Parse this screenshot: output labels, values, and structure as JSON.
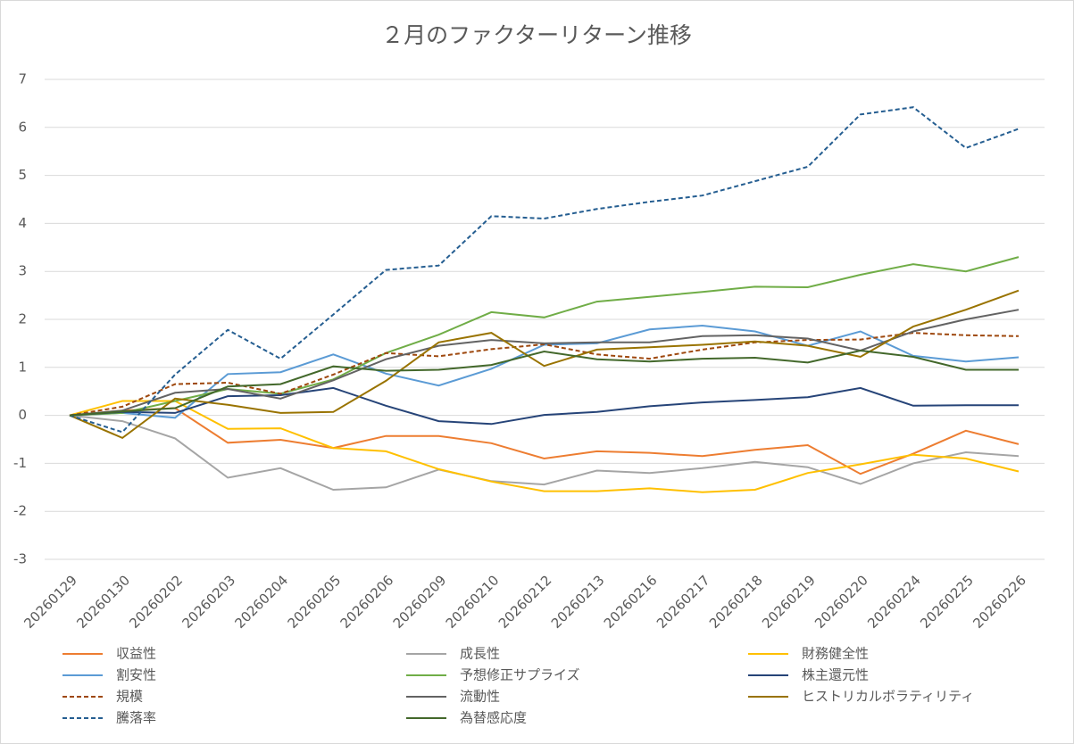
{
  "chart_data": {
    "type": "line",
    "title": "２月のファクターリターン推移",
    "categories": [
      "20260129",
      "20260130",
      "20260202",
      "20260203",
      "20260204",
      "20260205",
      "20260206",
      "20260209",
      "20260210",
      "20260212",
      "20260213",
      "20260216",
      "20260217",
      "20260218",
      "20260219",
      "20260220",
      "20260224",
      "20260225",
      "20260226"
    ],
    "ylim": [
      -3,
      7
    ],
    "yticks": [
      -3,
      -2,
      -1,
      0,
      1,
      2,
      3,
      4,
      5,
      6,
      7
    ],
    "grid": true,
    "legend": "bottom",
    "series": [
      {
        "name": "収益性",
        "color": "#ED7D31",
        "dashed": false,
        "values": [
          0,
          0.1,
          0.15,
          -0.57,
          -0.51,
          -0.68,
          -0.43,
          -0.43,
          -0.58,
          -0.9,
          -0.75,
          -0.78,
          -0.85,
          -0.72,
          -0.62,
          -1.22,
          -0.8,
          -0.32,
          -0.6
        ]
      },
      {
        "name": "成長性",
        "color": "#A5A5A5",
        "dashed": false,
        "values": [
          0,
          -0.12,
          -0.48,
          -1.3,
          -1.1,
          -1.55,
          -1.5,
          -1.13,
          -1.37,
          -1.44,
          -1.15,
          -1.2,
          -1.1,
          -0.97,
          -1.08,
          -1.43,
          -1.0,
          -0.77,
          -0.85
        ]
      },
      {
        "name": "財務健全性",
        "color": "#FFC000",
        "dashed": false,
        "values": [
          0,
          0.3,
          0.3,
          -0.28,
          -0.27,
          -0.68,
          -0.75,
          -1.12,
          -1.38,
          -1.58,
          -1.58,
          -1.52,
          -1.6,
          -1.55,
          -1.2,
          -1.02,
          -0.82,
          -0.9,
          -1.17
        ]
      },
      {
        "name": "割安性",
        "color": "#5B9BD5",
        "dashed": false,
        "values": [
          0,
          0.05,
          -0.05,
          0.86,
          0.9,
          1.27,
          0.87,
          0.62,
          0.97,
          1.47,
          1.5,
          1.79,
          1.87,
          1.75,
          1.45,
          1.75,
          1.24,
          1.12,
          1.21
        ]
      },
      {
        "name": "予想修正サプライズ",
        "color": "#70AD47",
        "dashed": false,
        "values": [
          0,
          0.05,
          0.3,
          0.55,
          0.45,
          0.75,
          1.3,
          1.68,
          2.15,
          2.04,
          2.37,
          2.47,
          2.57,
          2.68,
          2.67,
          2.93,
          3.15,
          3.0,
          3.3
        ]
      },
      {
        "name": "株主還元性",
        "color": "#264478",
        "dashed": false,
        "values": [
          0,
          0.07,
          0.05,
          0.4,
          0.42,
          0.57,
          0.2,
          -0.12,
          -0.18,
          0.01,
          0.07,
          0.19,
          0.27,
          0.32,
          0.38,
          0.57,
          0.2,
          0.21,
          0.21
        ]
      },
      {
        "name": "規模",
        "color": "#9E480E",
        "dashed": true,
        "values": [
          0,
          0.18,
          0.65,
          0.68,
          0.45,
          0.85,
          1.3,
          1.23,
          1.38,
          1.48,
          1.27,
          1.18,
          1.37,
          1.52,
          1.57,
          1.58,
          1.72,
          1.67,
          1.65
        ]
      },
      {
        "name": "流動性",
        "color": "#636363",
        "dashed": false,
        "values": [
          0,
          0.1,
          0.47,
          0.55,
          0.35,
          0.73,
          1.17,
          1.45,
          1.57,
          1.5,
          1.52,
          1.52,
          1.65,
          1.67,
          1.6,
          1.35,
          1.75,
          2.0,
          2.2
        ]
      },
      {
        "name": "ヒストリカルボラティリティ",
        "color": "#997300",
        "dashed": false,
        "values": [
          0,
          -0.47,
          0.35,
          0.22,
          0.05,
          0.07,
          0.72,
          1.52,
          1.72,
          1.03,
          1.37,
          1.42,
          1.47,
          1.54,
          1.45,
          1.22,
          1.85,
          2.2,
          2.6
        ]
      },
      {
        "name": "騰落率",
        "color": "#255E91",
        "dashed": true,
        "values": [
          0,
          -0.35,
          0.85,
          1.78,
          1.18,
          2.1,
          3.03,
          3.12,
          4.15,
          4.1,
          4.3,
          4.45,
          4.58,
          4.88,
          5.18,
          6.27,
          6.42,
          5.57,
          5.97
        ]
      },
      {
        "name": "為替感応度",
        "color": "#43682B",
        "dashed": false,
        "values": [
          0,
          0.08,
          0.15,
          0.6,
          0.65,
          1.02,
          0.93,
          0.95,
          1.05,
          1.33,
          1.17,
          1.12,
          1.18,
          1.2,
          1.1,
          1.35,
          1.22,
          0.95,
          0.95
        ]
      }
    ]
  }
}
